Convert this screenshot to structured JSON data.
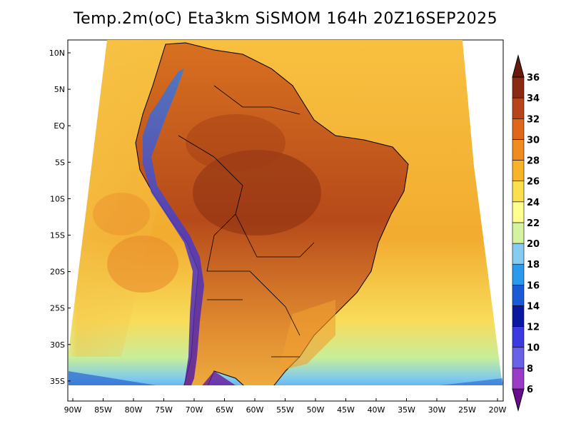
{
  "title": "Temp.2m(oC) Eta3km SiSMOM 164h 20Z16SEP2025",
  "map": {
    "lat_labels": [
      "10N",
      "5N",
      "EQ",
      "5S",
      "10S",
      "15S",
      "20S",
      "25S",
      "30S",
      "35S"
    ],
    "lon_labels": [
      "90W",
      "85W",
      "80W",
      "75W",
      "70W",
      "65W",
      "60W",
      "55W",
      "50W",
      "45W",
      "40W",
      "35W",
      "30W",
      "25W",
      "20W"
    ],
    "lat_range": [
      -38,
      11
    ],
    "lon_range": [
      -91,
      -19
    ],
    "variable": "2 m air temperature",
    "unit": "oC"
  },
  "colorbar": {
    "labels": [
      "6",
      "8",
      "10",
      "12",
      "14",
      "16",
      "18",
      "20",
      "22",
      "24",
      "26",
      "28",
      "30",
      "32",
      "34",
      "36"
    ],
    "colors": [
      "#6a0a8c",
      "#9a3cc8",
      "#6a62e6",
      "#3a3ae0",
      "#0a18a0",
      "#1a5ad6",
      "#2a9aec",
      "#86ccf2",
      "#d4f2a0",
      "#ffff90",
      "#fae050",
      "#f8b428",
      "#f08c1e",
      "#e0661a",
      "#b8451a",
      "#8a2a12",
      "#6a1a0a"
    ]
  }
}
